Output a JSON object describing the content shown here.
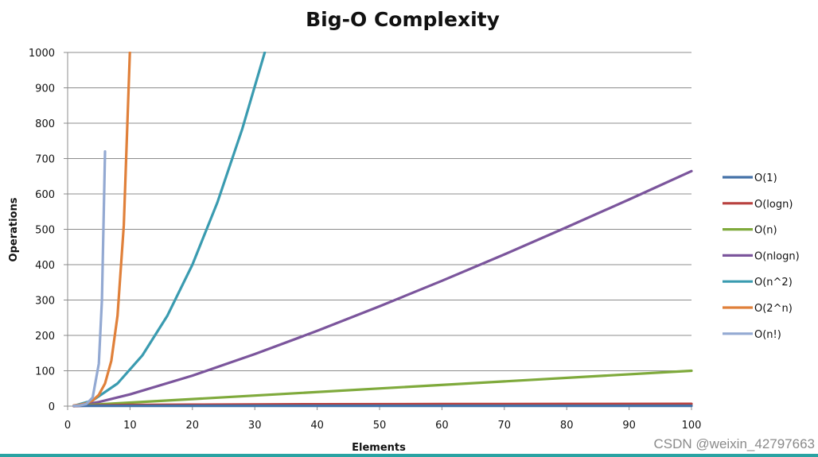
{
  "chart_data": {
    "type": "line",
    "title": "Big-O Complexity",
    "xlabel": "Elements",
    "ylabel": "Operations",
    "xlim": [
      0,
      100
    ],
    "ylim": [
      0,
      1000
    ],
    "x_ticks": [
      0,
      10,
      20,
      30,
      40,
      50,
      60,
      70,
      80,
      90,
      100
    ],
    "y_ticks": [
      0,
      100,
      200,
      300,
      400,
      500,
      600,
      700,
      800,
      900,
      1000
    ],
    "grid": "horizontal",
    "legend_position": "right",
    "series": [
      {
        "name": "O(1)",
        "color": "#4472a8",
        "x": [
          1,
          100
        ],
        "y": [
          1,
          1
        ]
      },
      {
        "name": "O(logn)",
        "color": "#b8413f",
        "x": [
          1,
          2,
          5,
          10,
          20,
          40,
          60,
          80,
          100
        ],
        "y": [
          0,
          1,
          2.3,
          3.3,
          4.3,
          5.3,
          5.9,
          6.3,
          6.6
        ]
      },
      {
        "name": "O(n)",
        "color": "#7faa3c",
        "x": [
          1,
          100
        ],
        "y": [
          1,
          100
        ]
      },
      {
        "name": "O(nlogn)",
        "color": "#7b559c",
        "x": [
          1,
          2,
          5,
          10,
          20,
          30,
          40,
          50,
          60,
          70,
          80,
          90,
          100
        ],
        "y": [
          0,
          2,
          11.6,
          33.2,
          86.4,
          147.2,
          212.9,
          282.2,
          354.4,
          429.1,
          505.8,
          584.3,
          664.4
        ]
      },
      {
        "name": "O(n^2)",
        "color": "#3a9bb0",
        "x": [
          1,
          4,
          8,
          12,
          16,
          20,
          24,
          28,
          31.6
        ],
        "y": [
          1,
          16,
          64,
          144,
          256,
          400,
          576,
          784,
          1000
        ]
      },
      {
        "name": "O(2^n)",
        "color": "#e0803a",
        "x": [
          1,
          2,
          3,
          4,
          5,
          6,
          7,
          8,
          9,
          9.97
        ],
        "y": [
          2,
          4,
          8,
          16,
          32,
          64,
          128,
          256,
          512,
          1000
        ]
      },
      {
        "name": "O(n!)",
        "color": "#93a9d2",
        "x": [
          1,
          2,
          3,
          4,
          5,
          5.5,
          6
        ],
        "y": [
          1,
          2,
          6,
          24,
          120,
          300,
          720
        ]
      }
    ]
  },
  "watermark": "CSDN @weixin_42797663"
}
